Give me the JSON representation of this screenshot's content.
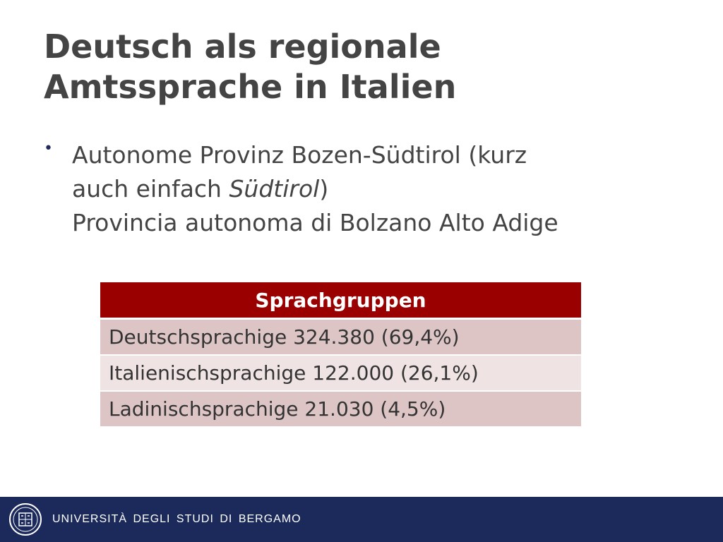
{
  "slide": {
    "title_line1": "Deutsch als regionale",
    "title_line2": "Amtssprache in Italien",
    "bullet": {
      "line1": "Autonome Provinz Bozen-Südtirol (kurz",
      "line2_prefix": "auch einfach ",
      "line2_italic": "Südtirol",
      "line2_suffix": ")",
      "line3": "Provincia autonoma di Bolzano Alto Adige"
    },
    "table": {
      "header": "Sprachgruppen",
      "rows": [
        "Deutschsprachige 324.380 (69,4%)",
        "Italienischsprachige 122.000 (26,1%)",
        "Ladinischsprachige 21.030 (4,5%)"
      ]
    }
  },
  "footer": {
    "university": "UNIVERSITÀ DEGLI STUDI DI BERGAMO",
    "seal_icon": "university-seal-icon"
  },
  "colors": {
    "title_text": "#444444",
    "table_header": "#9b0000",
    "footer_bar": "#1c2a5b"
  }
}
